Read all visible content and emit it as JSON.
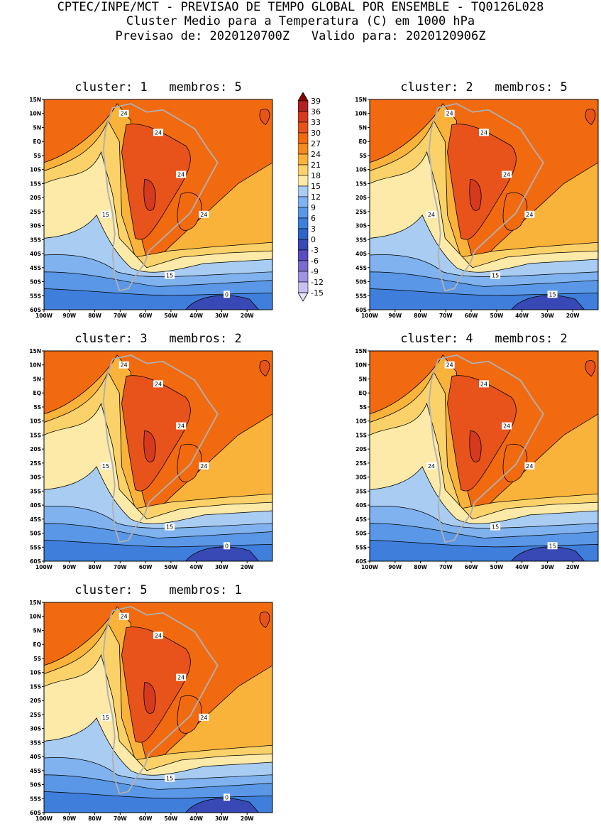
{
  "header": {
    "line1": "CPTEC/INPE/MCT - PREVISAO DE TEMPO GLOBAL POR ENSEMBLE - TQ0126L028",
    "line2": "Cluster Medio para a Temperatura (C) em 1000 hPa",
    "line3": "Previsao de: 2020120700Z   Valido para: 2020120906Z"
  },
  "axes": {
    "lat_labels": [
      "15N",
      "10N",
      "5N",
      "EQ",
      "5S",
      "10S",
      "15S",
      "20S",
      "25S",
      "30S",
      "35S",
      "40S",
      "45S",
      "50S",
      "55S",
      "60S"
    ],
    "lon_labels": [
      "100W",
      "90W",
      "80W",
      "70W",
      "60W",
      "50W",
      "40W",
      "30W",
      "20W"
    ],
    "lat_range": [
      -60,
      15
    ],
    "lon_range": [
      -100,
      -10
    ]
  },
  "colorbar": {
    "levels": [
      "39",
      "36",
      "33",
      "30",
      "27",
      "24",
      "21",
      "18",
      "15",
      "12",
      "9",
      "6",
      "3",
      "0",
      "-3",
      "-6",
      "-9",
      "-12",
      "-15"
    ],
    "colors": [
      "#8b0000",
      "#b22222",
      "#d63a1e",
      "#e8531c",
      "#f26a10",
      "#f58a1e",
      "#f9b23a",
      "#fbd26a",
      "#fdeaa8",
      "#a9ccf2",
      "#7fb2ee",
      "#5a97e6",
      "#3f7fdb",
      "#2f64c9",
      "#3848b4",
      "#5a4cc0",
      "#7a6bd0",
      "#9f92e0",
      "#c8c0f0",
      "#e6e0fa"
    ]
  },
  "panels": [
    {
      "title": "cluster: 1   membros: 5",
      "labels": [
        "24",
        "24",
        "24",
        "24",
        "15",
        "15",
        "0"
      ]
    },
    {
      "title": "cluster: 2   membros: 5",
      "labels": [
        "24",
        "24",
        "24",
        "24",
        "24",
        "15",
        "15"
      ]
    },
    {
      "title": "cluster: 3   membros: 2",
      "labels": [
        "24",
        "24",
        "24",
        "24",
        "15",
        "15",
        "0"
      ]
    },
    {
      "title": "cluster: 4   membros: 2",
      "labels": [
        "24",
        "24",
        "24",
        "24",
        "24",
        "15",
        "15"
      ]
    },
    {
      "title": "cluster: 5   membros: 1",
      "labels": [
        "24",
        "24",
        "24",
        "24",
        "15",
        "15",
        "0"
      ]
    }
  ]
}
